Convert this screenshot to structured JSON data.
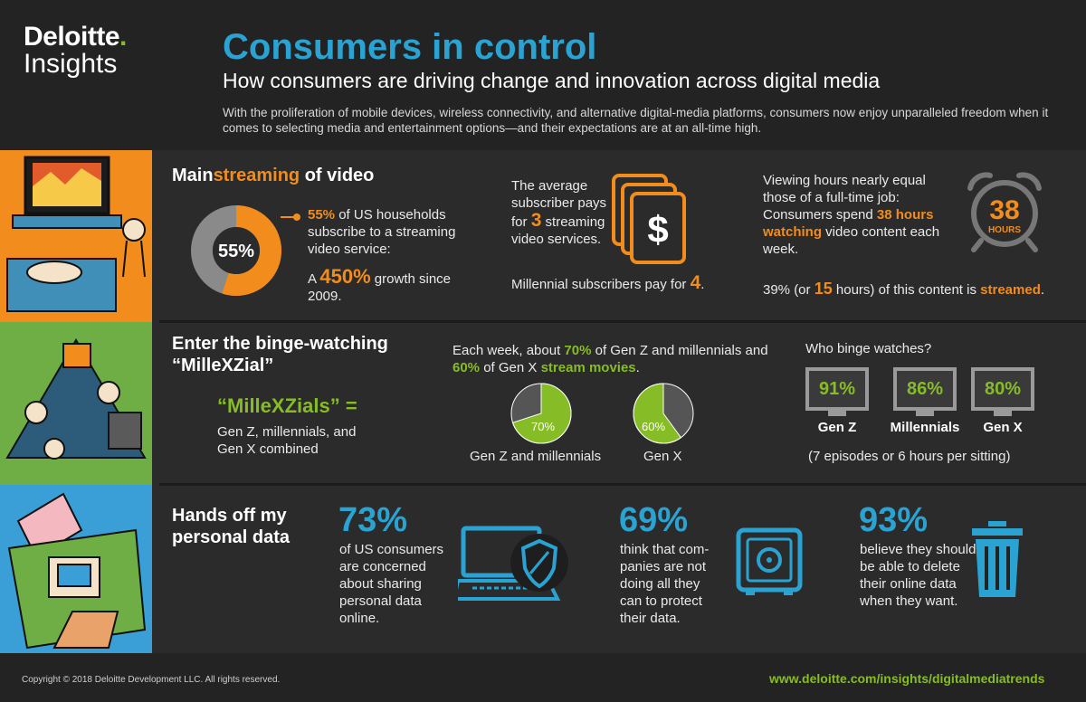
{
  "brand": {
    "name": "Deloitte",
    "dot": ".",
    "sub": "Insights"
  },
  "header": {
    "title": "Consumers in control",
    "subtitle": "How consumers are driving change and innovation across digital media",
    "intro": "With the proliferation of mobile devices, wireless connectivity, and alternative digital-media platforms, consumers now enjoy unparalleled freedom when it comes to selecting media and entertainment options—and their expectations are at an all-time high."
  },
  "colors": {
    "orange": "#f28c1d",
    "green": "#86bc25",
    "blue": "#2aa3d3",
    "grey": "#8a8a8a"
  },
  "sec1": {
    "title_a": "Main",
    "title_b": "streaming",
    "title_c": " of video",
    "donut_label": "55%",
    "donut_share": 0.55,
    "stat_pct": "55%",
    "stat_text": " of US households subscribe to a streaming video service:",
    "growth_pre": "A ",
    "growth_val": "450%",
    "growth_post": " growth since 2009.",
    "avg_text_a": "The average subscriber pays for ",
    "avg_num": "3",
    "avg_text_b": " streaming video services.",
    "mill_text": "Millennial subscribers pay for ",
    "mill_num": "4",
    "mill_end": ".",
    "dollar": "$",
    "view_a": "Viewing hours nearly equal those of a full-time job: Consumers spend ",
    "view_hl": "38 hours watching",
    "view_b": " video content each week.",
    "clock_num": "38",
    "clock_unit": "HOURS",
    "stream_a": "39% (or ",
    "stream_num": "15",
    "stream_b": " hours) of this content is ",
    "stream_hl": "streamed",
    "stream_end": "."
  },
  "sec2": {
    "title": "Enter the binge-watching “MilleXZial”",
    "def_title": "“MilleXZials” =",
    "def_text": "Gen Z, millennials, and Gen X combined",
    "week_a": "Each week, about ",
    "week_70": "70%",
    "week_b": " of Gen Z and millennials and ",
    "week_60": "60%",
    "week_c": " of Gen X ",
    "week_hl": "stream movies",
    "week_end": ".",
    "pie1_label": "70%",
    "pie1_share": 0.7,
    "pie1_caption": "Gen Z and millennials",
    "pie2_label": "60%",
    "pie2_share": 0.6,
    "pie2_caption": "Gen X",
    "who_title": "Who binge watches?",
    "who": [
      {
        "pct": "91%",
        "label": "Gen Z"
      },
      {
        "pct": "86%",
        "label": "Millennials"
      },
      {
        "pct": "80%",
        "label": "Gen X"
      }
    ],
    "who_note": "(7 episodes or 6 hours per sitting)"
  },
  "sec3": {
    "title": "Hands off my personal data",
    "stats": [
      {
        "pct": "73%",
        "text": "of US consumers are concerned about sharing personal data online."
      },
      {
        "pct": "69%",
        "text": "think that com-panies are not doing all they can to protect their data."
      },
      {
        "pct": "93%",
        "text": "believe they should be able to delete their online data when they want."
      }
    ]
  },
  "footer": {
    "copyright": "Copyright © 2018 Deloitte Development LLC. All rights reserved.",
    "url": "www.deloitte.com/insights/digitalmediatrends"
  }
}
